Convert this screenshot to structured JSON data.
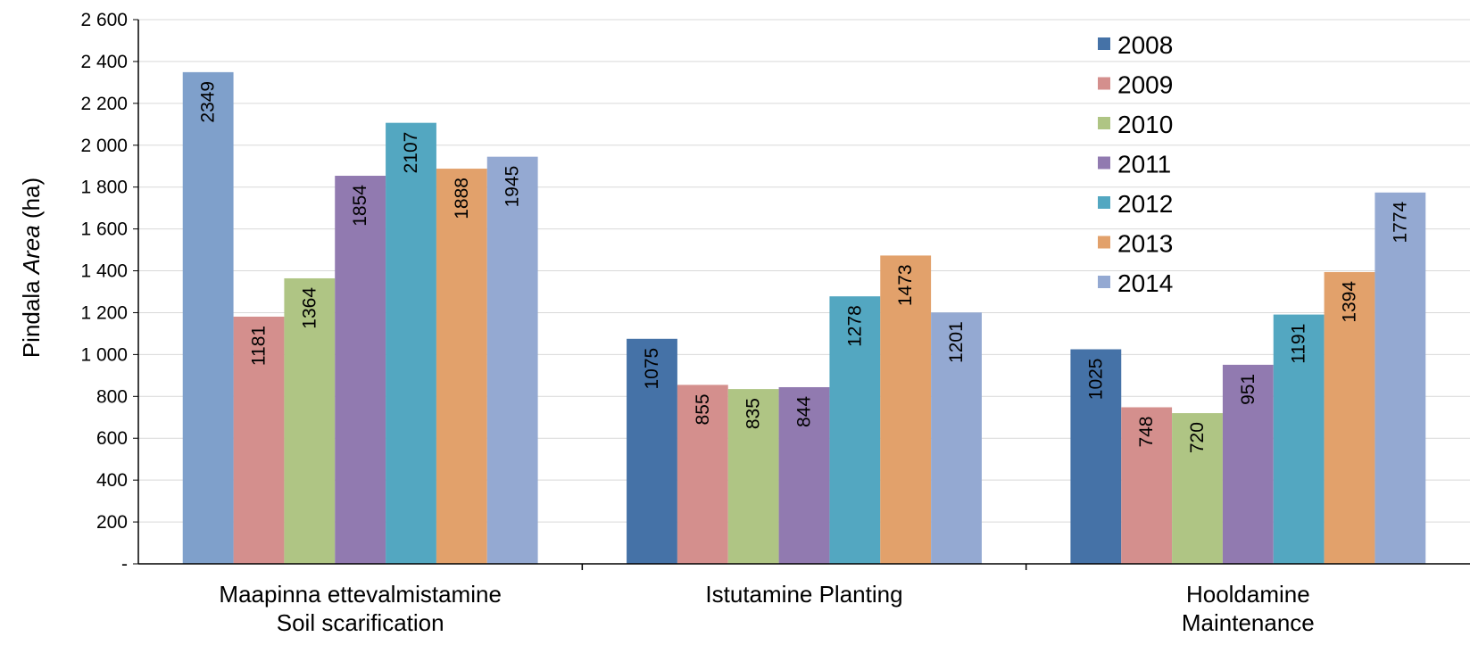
{
  "chart_data": {
    "type": "bar",
    "ylabel_parts": [
      "Pindala ",
      "Area",
      " (ha)"
    ],
    "ylim": [
      0,
      2600
    ],
    "yticks": [
      0,
      200,
      400,
      600,
      800,
      1000,
      1200,
      1400,
      1600,
      1800,
      2000,
      2200,
      2400,
      2600
    ],
    "ytick_labels": [
      "-",
      "200",
      "400",
      "600",
      "800",
      "1 000",
      "1 200",
      "1 400",
      "1 600",
      "1 800",
      "2 000",
      "2 200",
      "2 400",
      "2 600"
    ],
    "grid": true,
    "legend_position": "top-right",
    "categories": [
      [
        "Maapinna ettevalmistamine",
        "Soil scarification"
      ],
      [
        "Istutamine Planting"
      ],
      [
        "Hooldamine",
        "Maintenance"
      ]
    ],
    "series": [
      {
        "name": "2008",
        "color": "#4572A7",
        "values": [
          null,
          1075,
          1025
        ]
      },
      {
        "name": "2009",
        "color": "#D48F8D",
        "values": [
          1181,
          855,
          748
        ]
      },
      {
        "name": "2010",
        "color": "#AFC584",
        "values": [
          1364,
          835,
          720
        ]
      },
      {
        "name": "2011",
        "color": "#917AB0",
        "values": [
          1854,
          844,
          951
        ]
      },
      {
        "name": "2012",
        "color": "#53A7C1",
        "values": [
          2107,
          1278,
          1191
        ]
      },
      {
        "name": "2013",
        "color": "#E2A16B",
        "values": [
          1888,
          1473,
          1394
        ]
      },
      {
        "name": "2014",
        "color": "#94A9D2",
        "values": [
          1945,
          1201,
          1774
        ]
      }
    ],
    "extra_bars": [
      {
        "category_index": 0,
        "slot": 0,
        "value": 2349,
        "color": "#7FA0CB",
        "label": "2349"
      }
    ]
  }
}
